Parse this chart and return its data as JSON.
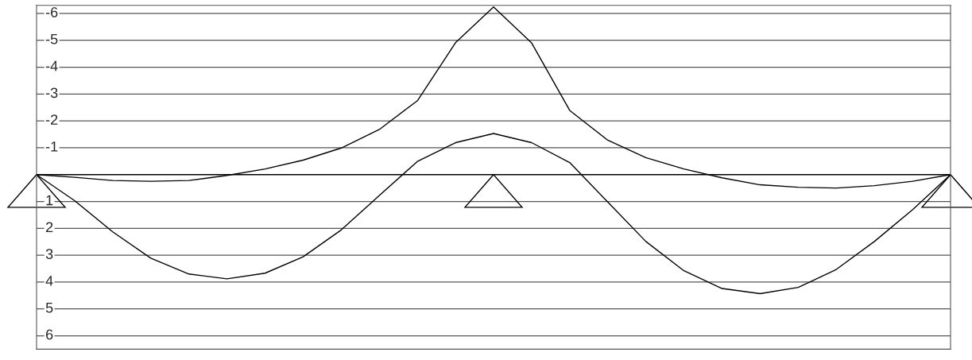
{
  "chart_data": {
    "type": "line",
    "categories": [
      null,
      null,
      null,
      null,
      null,
      null,
      null,
      null,
      null,
      null,
      null,
      null,
      null,
      null,
      null,
      null,
      null,
      null,
      null,
      null,
      null,
      null,
      null,
      null,
      null
    ],
    "series": [
      {
        "color": "#000000",
        "values": [
          0,
          0.1,
          0.22,
          0.25,
          0.22,
          0.03,
          -0.21,
          -0.54,
          -0.99,
          -1.68,
          -2.75,
          -4.91,
          -6.24,
          -4.9,
          -2.39,
          -1.28,
          -0.63,
          -0.21,
          0.12,
          0.38,
          0.47,
          0.5,
          0.41,
          0.25,
          0
        ]
      },
      {
        "color": "#000000",
        "values": [
          0,
          0.97,
          2.13,
          3.11,
          3.7,
          3.88,
          3.67,
          3.06,
          2.06,
          0.78,
          -0.49,
          -1.19,
          -1.53,
          -1.19,
          -0.45,
          1.02,
          2.49,
          3.58,
          4.24,
          4.43,
          4.2,
          3.53,
          2.49,
          1.31,
          0
        ]
      }
    ],
    "ylim": [
      6.5,
      -6.3
    ],
    "yticks": [
      -6,
      -5,
      -4,
      -3,
      -2,
      -1,
      1,
      2,
      3,
      4,
      5,
      6
    ],
    "grid": "y",
    "tick_labels": "y",
    "marker": "none",
    "line_style": "solid",
    "ref_lines": [
      {
        "axis": "y",
        "value": 0,
        "color": "#000000"
      }
    ]
  }
}
